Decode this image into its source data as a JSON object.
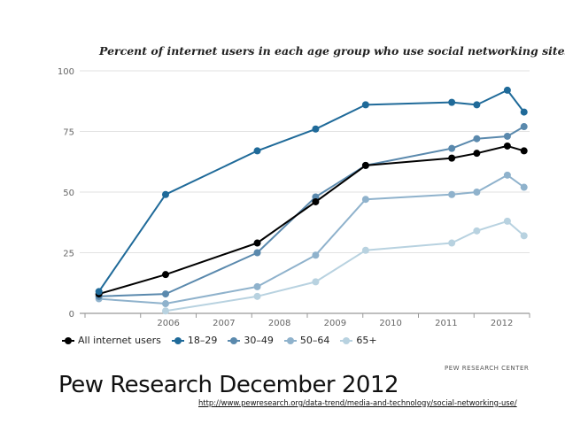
{
  "chart_data": {
    "type": "line",
    "title": "Percent of internet users in each age group who use social networking sites",
    "xlabel": "",
    "ylabel": "",
    "ylim": [
      0,
      100
    ],
    "yticks": [
      0,
      25,
      50,
      75,
      100
    ],
    "xlim": [
      2005.0,
      2013.0
    ],
    "xticks": [
      2006,
      2007,
      2008,
      2009,
      2010,
      2011,
      2012
    ],
    "grid": "horizontal",
    "legend_position": "bottom",
    "series": [
      {
        "name": "All internet users",
        "color": "#000000",
        "x": [
          2005.25,
          2006.45,
          2008.1,
          2009.15,
          2010.05,
          2011.6,
          2012.05,
          2012.6,
          2012.9
        ],
        "y": [
          8,
          16,
          29,
          46,
          61,
          64,
          66,
          69,
          67
        ]
      },
      {
        "name": "18-29",
        "color": "#1f6a99",
        "x": [
          2005.25,
          2006.45,
          2008.1,
          2009.15,
          2010.05,
          2011.6,
          2012.05,
          2012.6,
          2012.9
        ],
        "y": [
          9,
          49,
          67,
          76,
          86,
          87,
          86,
          92,
          83
        ]
      },
      {
        "name": "30-49",
        "color": "#5a89ad",
        "x": [
          2005.25,
          2006.45,
          2008.1,
          2009.15,
          2010.05,
          2011.6,
          2012.05,
          2012.6,
          2012.9
        ],
        "y": [
          7,
          8,
          25,
          48,
          61,
          68,
          72,
          73,
          77
        ]
      },
      {
        "name": "50-64",
        "color": "#8fb2cc",
        "x": [
          2005.25,
          2006.45,
          2008.1,
          2009.15,
          2010.05,
          2011.6,
          2012.05,
          2012.6,
          2012.9
        ],
        "y": [
          6,
          4,
          11,
          24,
          47,
          49,
          50,
          57,
          52
        ]
      },
      {
        "name": "65+",
        "color": "#b8d2e0",
        "x": [
          2006.45,
          2008.1,
          2009.15,
          2010.05,
          2011.6,
          2012.05,
          2012.6,
          2012.9
        ],
        "y": [
          1,
          7,
          13,
          26,
          29,
          34,
          38,
          32
        ]
      }
    ],
    "source": "PEW RESEARCH CENTER"
  },
  "slide": {
    "caption": "Pew Research December 2012",
    "url": "http://www.pewresearch.org/data-trend/media-and-technology/social-networking-use/"
  }
}
